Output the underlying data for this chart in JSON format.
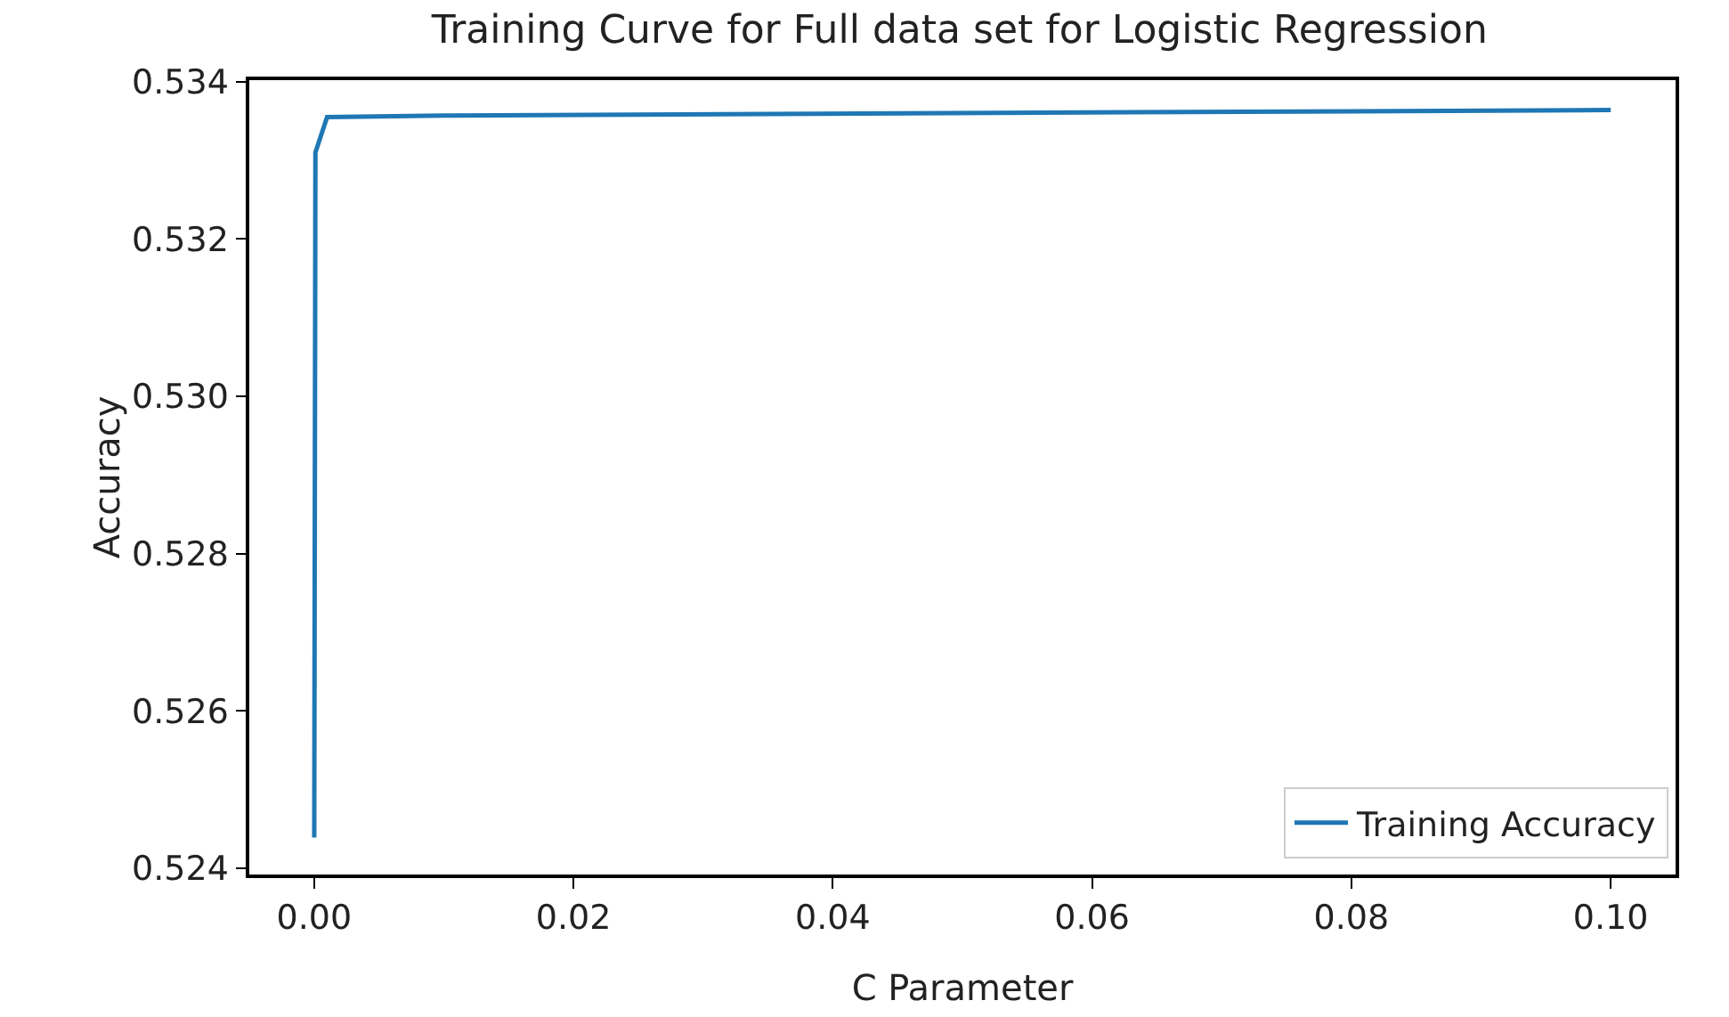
{
  "chart_data": {
    "type": "line",
    "title": "Training Curve for Full data set for Logistic Regression",
    "xlabel": "C Parameter",
    "ylabel": "Accuracy",
    "x": [
      1e-05,
      0.0001,
      0.001,
      0.01,
      0.1
    ],
    "series": [
      {
        "name": "Training Accuracy",
        "color": "#1f77b4",
        "values": [
          0.52439,
          0.5331,
          0.53355,
          0.53357,
          0.53364
        ]
      }
    ],
    "xlim": [
      -0.005,
      0.105
    ],
    "xticks": [
      {
        "value": 0,
        "label": "0.00"
      },
      {
        "value": 0.02,
        "label": "0.02"
      },
      {
        "value": 0.04,
        "label": "0.04"
      },
      {
        "value": 0.06,
        "label": "0.06"
      },
      {
        "value": 0.08,
        "label": "0.08"
      },
      {
        "value": 0.1,
        "label": "0.10"
      }
    ],
    "ylim": [
      0.52392,
      0.53402
    ],
    "yticks": [
      {
        "value": 0.524,
        "label": "0.524"
      },
      {
        "value": 0.526,
        "label": "0.526"
      },
      {
        "value": 0.528,
        "label": "0.528"
      },
      {
        "value": 0.53,
        "label": "0.530"
      },
      {
        "value": 0.532,
        "label": "0.532"
      },
      {
        "value": 0.534,
        "label": "0.534"
      }
    ],
    "grid": false,
    "legend": "bottom right"
  }
}
